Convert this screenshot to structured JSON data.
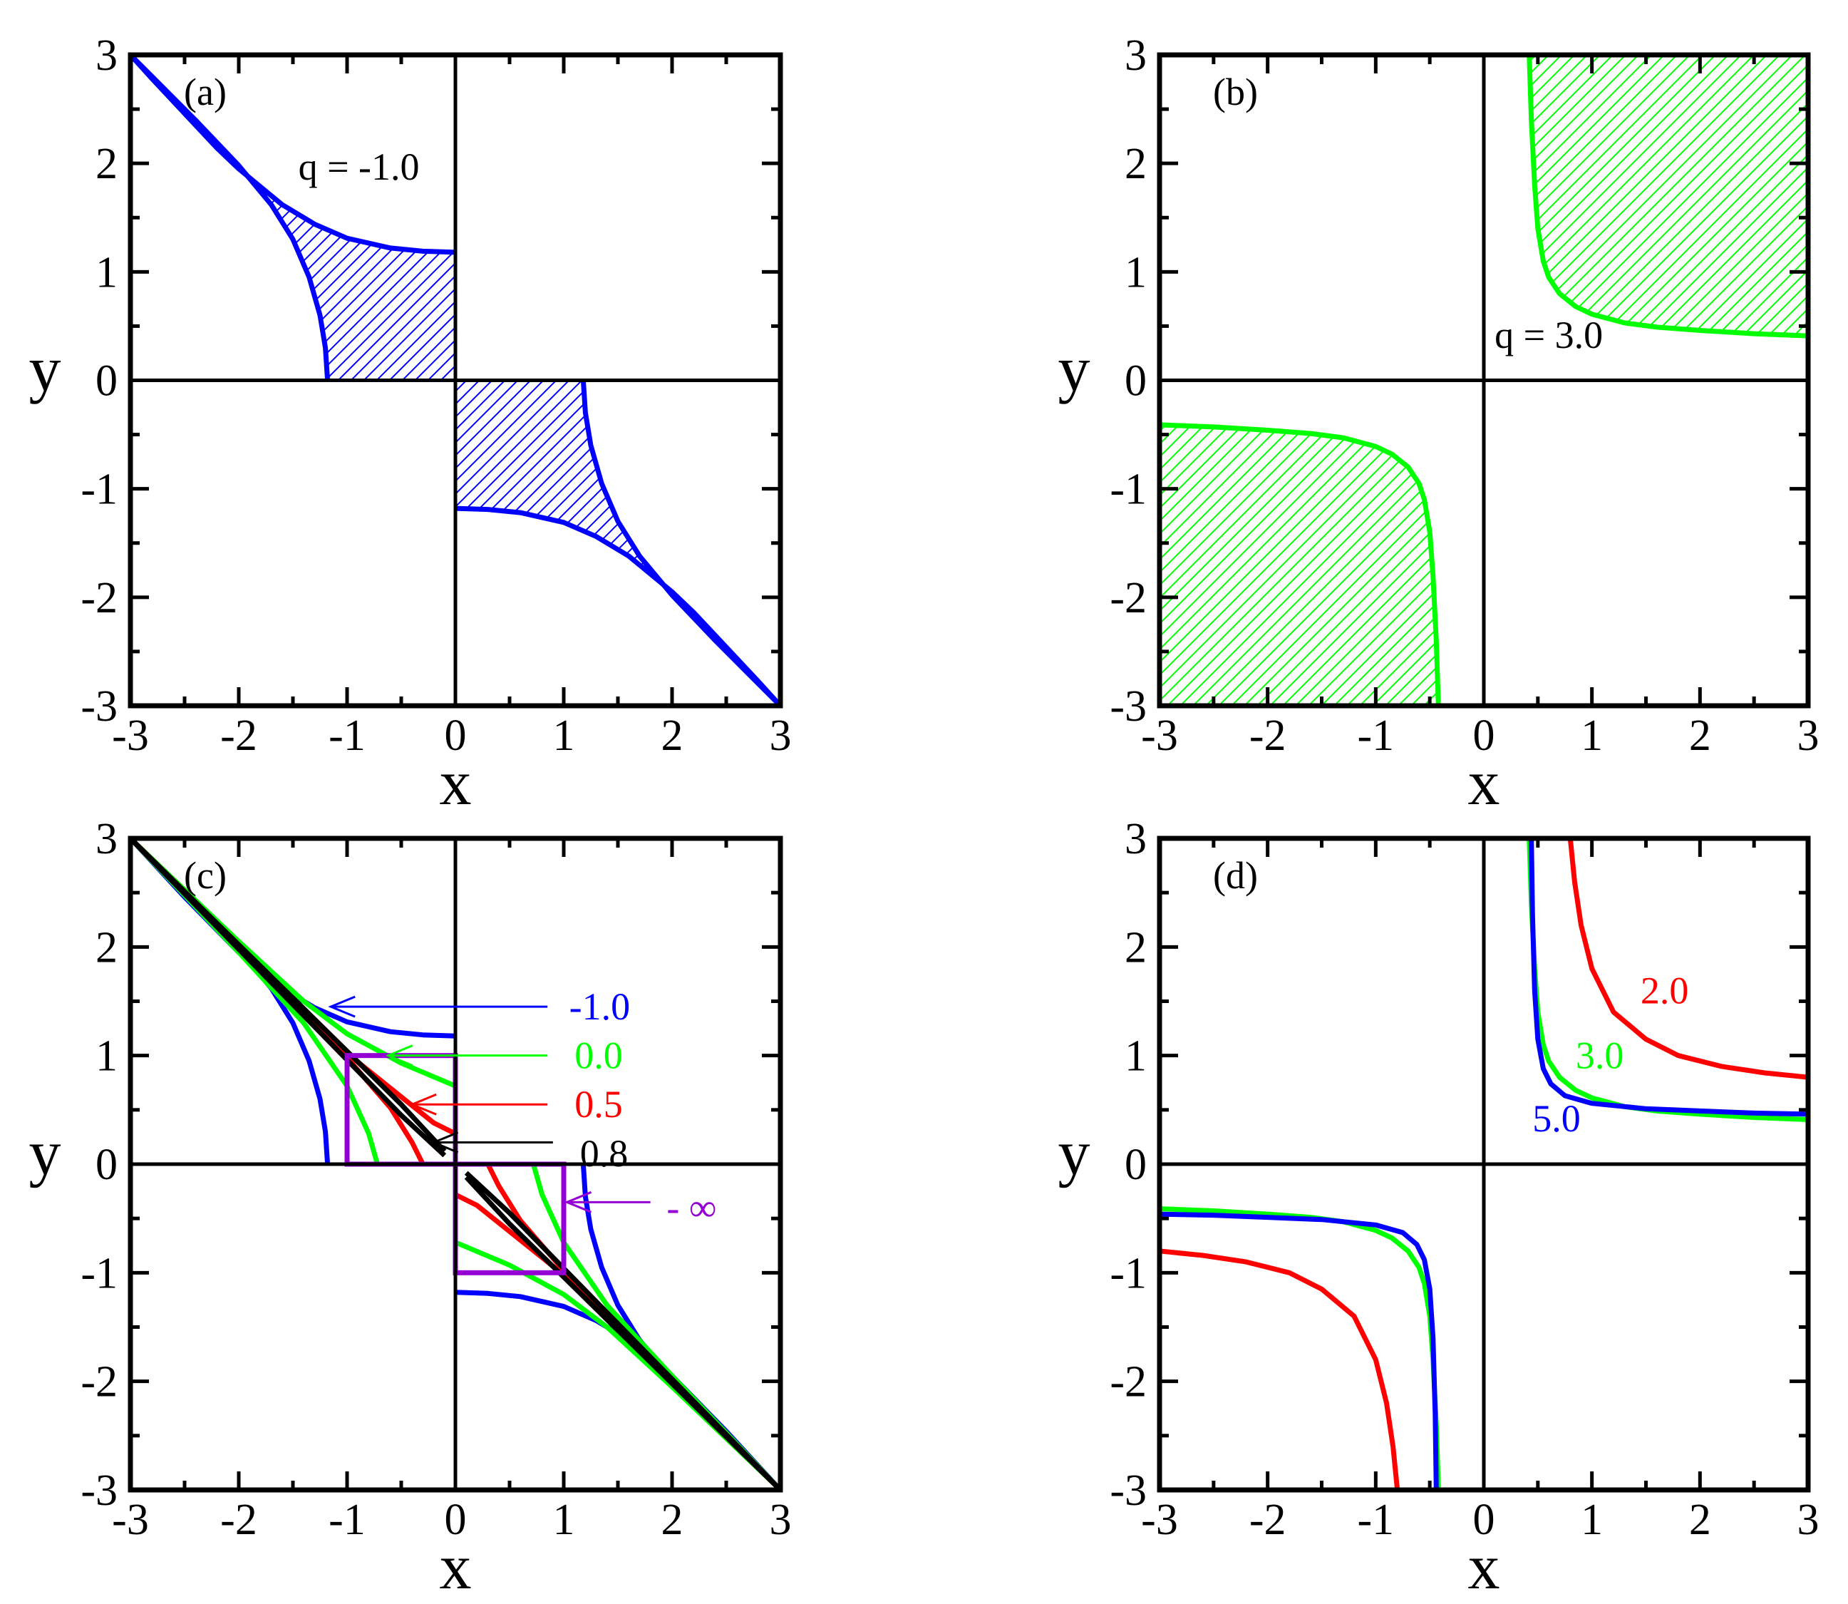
{
  "colors": {
    "blue": "#0000ff",
    "green": "#00ff00",
    "red": "#ff0000",
    "black": "#000000",
    "purple": "#9400d3"
  },
  "chart_data": [
    {
      "panel": "(a)",
      "type": "area",
      "xlabel": "x",
      "ylabel": "y",
      "xlim": [
        -3,
        3
      ],
      "ylim": [
        -3,
        3
      ],
      "xticks": [
        "-3",
        "-2",
        "-1",
        "0",
        "1",
        "2",
        "3"
      ],
      "yticks": [
        "-3",
        "-2",
        "-1",
        "0",
        "1",
        "2",
        "3"
      ],
      "annotation": "q = -1.0",
      "series": [
        {
          "color": "blue",
          "hatched": true,
          "upper_x": [
            -3.0,
            -2.8,
            -2.5,
            -2.2,
            -2.0,
            -1.6,
            -1.3,
            -1.0,
            -0.6,
            -0.3,
            0.0
          ],
          "upper_y": [
            3.0,
            2.78,
            2.46,
            2.14,
            1.95,
            1.62,
            1.44,
            1.31,
            1.22,
            1.19,
            1.18
          ],
          "lower_x": [
            -3.0,
            -2.8,
            -2.4,
            -2.0,
            -1.7,
            -1.5,
            -1.35,
            -1.25,
            -1.2,
            -1.18
          ],
          "lower_y": [
            3.0,
            2.8,
            2.4,
            1.98,
            1.62,
            1.3,
            0.95,
            0.6,
            0.3,
            0.0
          ]
        }
      ]
    },
    {
      "panel": "(b)",
      "type": "area",
      "xlabel": "x",
      "ylabel": "y",
      "xlim": [
        -3,
        3
      ],
      "ylim": [
        -3,
        3
      ],
      "xticks": [
        "-3",
        "-2",
        "-1",
        "0",
        "1",
        "2",
        "3"
      ],
      "yticks": [
        "-3",
        "-2",
        "-1",
        "0",
        "1",
        "2",
        "3"
      ],
      "annotation": "q = 3.0",
      "series": [
        {
          "color": "green",
          "hatched": true,
          "x": [
            0.42,
            0.44,
            0.47,
            0.5,
            0.55,
            0.6,
            0.7,
            0.85,
            1.0,
            1.3,
            1.6,
            2.0,
            2.5,
            3.0
          ],
          "y": [
            3.0,
            2.4,
            1.8,
            1.4,
            1.1,
            0.95,
            0.8,
            0.68,
            0.61,
            0.53,
            0.49,
            0.46,
            0.43,
            0.41
          ]
        }
      ]
    },
    {
      "panel": "(c)",
      "type": "line",
      "xlabel": "x",
      "ylabel": "y",
      "xlim": [
        -3,
        3
      ],
      "ylim": [
        -3,
        3
      ],
      "xticks": [
        "-3",
        "-2",
        "-1",
        "0",
        "1",
        "2",
        "3"
      ],
      "yticks": [
        "-3",
        "-2",
        "-1",
        "0",
        "1",
        "2",
        "3"
      ],
      "series": [
        {
          "name": "-1.0",
          "color": "blue",
          "upper_x": [
            -3.0,
            -2.5,
            -2.0,
            -1.6,
            -1.3,
            -1.0,
            -0.6,
            -0.3,
            0.0
          ],
          "upper_y": [
            3.0,
            2.46,
            1.95,
            1.62,
            1.44,
            1.31,
            1.22,
            1.19,
            1.18
          ],
          "lower_x": [
            -3.0,
            -2.4,
            -2.0,
            -1.7,
            -1.5,
            -1.35,
            -1.25,
            -1.2,
            -1.18
          ],
          "lower_y": [
            3.0,
            2.4,
            1.98,
            1.62,
            1.3,
            0.95,
            0.6,
            0.3,
            0.0
          ]
        },
        {
          "name": "0.0",
          "color": "green",
          "upper_x": [
            -3.0,
            -2.0,
            -1.4,
            -1.0,
            -0.5,
            0.0
          ],
          "upper_y": [
            3.0,
            2.05,
            1.5,
            1.2,
            0.93,
            0.72
          ],
          "lower_x": [
            -3.0,
            -2.0,
            -1.4,
            -1.0,
            -0.8,
            -0.72
          ],
          "lower_y": [
            3.0,
            1.95,
            1.3,
            0.72,
            0.28,
            0.0
          ]
        },
        {
          "name": "0.5",
          "color": "red",
          "upper_x": [
            -3.0,
            -2.0,
            -1.0,
            -0.5,
            -0.2,
            0.0
          ],
          "upper_y": [
            3.0,
            2.02,
            1.02,
            0.62,
            0.38,
            0.28
          ],
          "lower_x": [
            -3.0,
            -2.0,
            -1.0,
            -0.6,
            -0.4,
            -0.3
          ],
          "lower_y": [
            3.0,
            1.98,
            0.98,
            0.52,
            0.2,
            0.0
          ]
        },
        {
          "name": "0.8",
          "color": "black",
          "upper_x": [
            -3.0,
            -2.0,
            -1.0,
            -0.5,
            -0.1
          ],
          "upper_y": [
            3.0,
            2.02,
            1.04,
            0.55,
            0.12
          ],
          "lower_x": [
            -3.0,
            -2.0,
            -1.0,
            -0.5,
            -0.1
          ],
          "lower_y": [
            3.0,
            1.98,
            0.96,
            0.45,
            0.08
          ]
        },
        {
          "name": "- ∞",
          "color": "purple",
          "box": [
            -1,
            0,
            0,
            1
          ]
        }
      ]
    },
    {
      "panel": "(d)",
      "type": "line",
      "xlabel": "x",
      "ylabel": "y",
      "xlim": [
        -3,
        3
      ],
      "ylim": [
        -3,
        3
      ],
      "xticks": [
        "-3",
        "-2",
        "-1",
        "0",
        "1",
        "2",
        "3"
      ],
      "yticks": [
        "-3",
        "-2",
        "-1",
        "0",
        "1",
        "2",
        "3"
      ],
      "series": [
        {
          "name": "2.0",
          "color": "red",
          "x": [
            0.8,
            0.84,
            0.9,
            1.0,
            1.2,
            1.5,
            1.8,
            2.2,
            2.6,
            3.0
          ],
          "y": [
            3.0,
            2.6,
            2.2,
            1.8,
            1.4,
            1.15,
            1.0,
            0.9,
            0.84,
            0.8
          ]
        },
        {
          "name": "3.0",
          "color": "green",
          "x": [
            0.42,
            0.44,
            0.47,
            0.5,
            0.55,
            0.6,
            0.7,
            0.85,
            1.0,
            1.3,
            1.6,
            2.0,
            2.5,
            3.0
          ],
          "y": [
            3.0,
            2.4,
            1.8,
            1.4,
            1.1,
            0.95,
            0.8,
            0.68,
            0.61,
            0.53,
            0.49,
            0.46,
            0.43,
            0.41
          ]
        },
        {
          "name": "5.0",
          "color": "blue",
          "x": [
            0.44,
            0.45,
            0.47,
            0.5,
            0.55,
            0.62,
            0.75,
            1.0,
            1.5,
            2.0,
            2.5,
            3.0
          ],
          "y": [
            3.0,
            2.3,
            1.6,
            1.15,
            0.88,
            0.74,
            0.63,
            0.56,
            0.51,
            0.49,
            0.47,
            0.46
          ]
        }
      ]
    }
  ]
}
